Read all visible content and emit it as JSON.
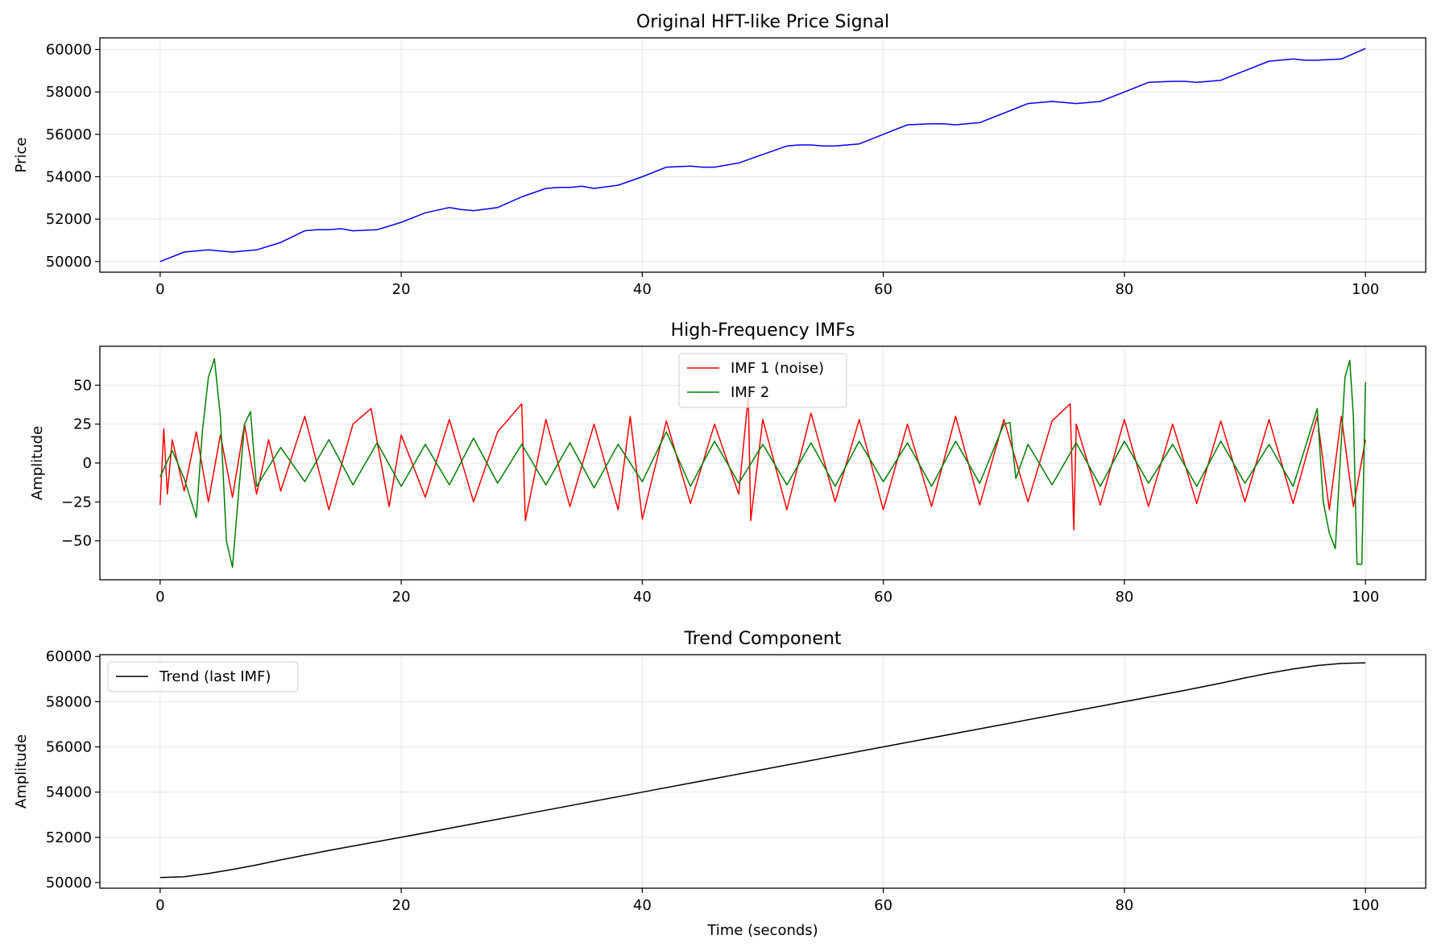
{
  "chart_data": [
    {
      "type": "line",
      "title": "Original HFT-like Price Signal",
      "xlabel": "",
      "ylabel": "Price",
      "xlim": [
        -5,
        105
      ],
      "ylim": [
        49500,
        60550
      ],
      "xticks": [
        0,
        20,
        40,
        60,
        80,
        100
      ],
      "yticks": [
        50000,
        52000,
        54000,
        56000,
        58000,
        60000
      ],
      "grid": true,
      "series": [
        {
          "color": "#0000ff",
          "x": [
            0,
            2,
            4,
            5,
            6,
            8,
            10,
            12,
            13,
            14,
            15,
            16,
            18,
            20,
            22,
            24,
            25,
            26,
            28,
            30,
            32,
            33,
            34,
            35,
            36,
            38,
            40,
            42,
            44,
            45,
            46,
            48,
            50,
            52,
            53,
            54,
            55,
            56,
            58,
            60,
            62,
            64,
            65,
            66,
            68,
            70,
            72,
            74,
            75,
            76,
            78,
            80,
            82,
            84,
            85,
            86,
            88,
            90,
            92,
            94,
            95,
            96,
            98,
            100
          ],
          "y": [
            50000,
            50450,
            50550,
            50500,
            50450,
            50550,
            50900,
            51450,
            51500,
            51500,
            51550,
            51450,
            51500,
            51850,
            52300,
            52550,
            52450,
            52400,
            52550,
            53050,
            53450,
            53500,
            53500,
            53550,
            53450,
            53600,
            54000,
            54450,
            54500,
            54450,
            54450,
            54650,
            55050,
            55450,
            55500,
            55500,
            55450,
            55450,
            55550,
            56000,
            56450,
            56500,
            56500,
            56450,
            56550,
            57000,
            57450,
            57550,
            57500,
            57450,
            57550,
            58000,
            58450,
            58500,
            58500,
            58450,
            58550,
            59000,
            59450,
            59550,
            59500,
            59500,
            59550,
            60050
          ]
        }
      ]
    },
    {
      "type": "line",
      "title": "High-Frequency IMFs",
      "xlabel": "",
      "ylabel": "Amplitude",
      "xlim": [
        -5,
        105
      ],
      "ylim": [
        -75,
        75
      ],
      "xticks": [
        0,
        20,
        40,
        60,
        80,
        100
      ],
      "yticks": [
        -50,
        -25,
        0,
        25,
        50
      ],
      "ytick_labels": [
        "−50",
        "−25",
        "0",
        "25",
        "50"
      ],
      "grid": true,
      "legend": "upper center",
      "series": [
        {
          "name": "IMF 1 (noise)",
          "color": "#ff0000",
          "x": [
            0,
            0.3,
            0.6,
            1,
            2,
            3,
            4,
            5,
            6,
            7,
            8,
            9,
            10,
            12,
            14,
            16,
            17.5,
            19,
            20,
            22,
            24,
            26,
            28,
            30,
            30.3,
            32,
            34,
            36,
            38,
            39,
            40,
            42,
            44,
            46,
            48,
            48.8,
            49,
            50,
            52,
            54,
            56,
            58,
            60,
            62,
            64,
            66,
            68,
            70,
            72,
            74,
            75.5,
            75.8,
            76,
            78,
            80,
            82,
            84,
            86,
            88,
            90,
            92,
            94,
            96,
            97,
            98,
            99,
            100
          ],
          "y": [
            -27,
            22,
            -20,
            15,
            -18,
            20,
            -25,
            18,
            -22,
            25,
            -20,
            15,
            -18,
            30,
            -30,
            25,
            35,
            -28,
            18,
            -22,
            28,
            -25,
            20,
            38,
            -37,
            28,
            -28,
            25,
            -30,
            30,
            -36,
            27,
            -26,
            25,
            -20,
            43,
            -37,
            28,
            -30,
            32,
            -25,
            28,
            -30,
            25,
            -28,
            30,
            -27,
            28,
            -25,
            27,
            38,
            -43,
            25,
            -27,
            28,
            -28,
            25,
            -26,
            27,
            -25,
            28,
            -26,
            30,
            -30,
            30,
            -28,
            15
          ]
        },
        {
          "name": "IMF 2",
          "color": "#008000",
          "x": [
            0,
            1,
            2,
            3,
            3.5,
            4,
            4.5,
            5,
            5.5,
            6,
            6.5,
            7,
            7.5,
            8,
            10,
            12,
            14,
            16,
            18,
            20,
            22,
            24,
            26,
            28,
            30,
            32,
            34,
            36,
            38,
            40,
            42,
            44,
            46,
            48,
            50,
            52,
            54,
            56,
            58,
            60,
            62,
            64,
            66,
            68,
            70,
            70.5,
            71,
            72,
            74,
            76,
            78,
            80,
            82,
            84,
            86,
            88,
            90,
            92,
            94,
            96,
            96.5,
            97,
            97.5,
            98,
            98.3,
            98.7,
            99,
            99.3,
            99.7,
            100
          ],
          "y": [
            -9,
            8,
            -10,
            -35,
            20,
            55,
            67,
            30,
            -50,
            -67,
            -20,
            25,
            33,
            -15,
            10,
            -12,
            15,
            -14,
            13,
            -15,
            12,
            -14,
            16,
            -13,
            12,
            -14,
            13,
            -16,
            12,
            -12,
            20,
            -15,
            14,
            -13,
            12,
            -14,
            13,
            -15,
            14,
            -12,
            13,
            -15,
            14,
            -13,
            25,
            26,
            -10,
            12,
            -14,
            13,
            -15,
            14,
            -13,
            12,
            -15,
            14,
            -13,
            12,
            -15,
            35,
            -25,
            -45,
            -55,
            15,
            55,
            66,
            30,
            -65,
            -65,
            52
          ]
        }
      ]
    },
    {
      "type": "line",
      "title": "Trend Component",
      "xlabel": "Time (seconds)",
      "ylabel": "Amplitude",
      "xlim": [
        -5,
        105
      ],
      "ylim": [
        49750,
        60080
      ],
      "xticks": [
        0,
        20,
        40,
        60,
        80,
        100
      ],
      "yticks": [
        50000,
        52000,
        54000,
        56000,
        58000,
        60000
      ],
      "grid": true,
      "legend": "upper left",
      "series": [
        {
          "name": "Trend (last IMF)",
          "color": "#000000",
          "x": [
            0,
            2,
            4,
            6,
            8,
            10,
            14,
            20,
            30,
            40,
            50,
            60,
            70,
            80,
            85,
            88,
            90,
            92,
            94,
            96,
            98,
            100
          ],
          "y": [
            50220,
            50260,
            50400,
            50580,
            50780,
            51000,
            51420,
            52000,
            53000,
            54000,
            55000,
            56000,
            57000,
            58000,
            58500,
            58820,
            59050,
            59260,
            59450,
            59600,
            59690,
            59720
          ]
        }
      ]
    }
  ]
}
